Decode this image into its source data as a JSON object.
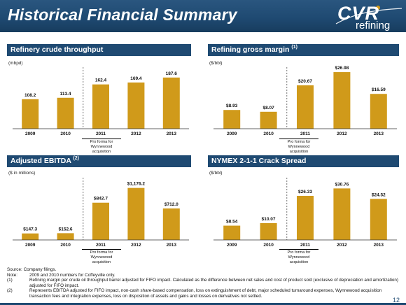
{
  "header": {
    "title": "Historical Financial Summary"
  },
  "logo": {
    "main": "CVR",
    "sub": "refining"
  },
  "colors": {
    "bar": "#d09a1a",
    "header": "#1f4a72"
  },
  "charts": [
    {
      "panel_title": "Refinery crude throughput",
      "superscript": "",
      "unit": "(mbpd)",
      "proforma": "Pro forma for Wynnewood acquisition"
    },
    {
      "panel_title": "Refining gross margin",
      "superscript": "(1)",
      "unit": "($/bbl)",
      "proforma": "Pro forma for Wynnewood acquisition"
    },
    {
      "panel_title": "Adjusted EBITDA",
      "superscript": "(2)",
      "unit": "($ in millions)",
      "proforma": "Pro forma for Wynnewood acquisition"
    },
    {
      "panel_title": "NYMEX 2-1-1 Crack Spread",
      "superscript": "",
      "unit": "($/bbl)",
      "proforma": "Pro forma for Wynnewood acquisition"
    }
  ],
  "chart_data": [
    {
      "type": "bar",
      "categories": [
        "2009",
        "2010",
        "2011",
        "2012",
        "2013"
      ],
      "values": [
        108.2,
        113.4,
        162.4,
        169.4,
        187.6
      ],
      "value_labels": [
        "108.2",
        "113.4",
        "162.4",
        "169.4",
        "187.6"
      ],
      "title": "Refinery crude throughput",
      "ylabel": "(mbpd)",
      "ylim": [
        0,
        200
      ]
    },
    {
      "type": "bar",
      "categories": [
        "2009",
        "2010",
        "2011",
        "2012",
        "2013"
      ],
      "values": [
        8.93,
        8.07,
        20.67,
        26.98,
        16.59
      ],
      "value_labels": [
        "$8.93",
        "$8.07",
        "$20.67",
        "$26.98",
        "$16.59"
      ],
      "title": "Refining gross margin (1)",
      "ylabel": "($/bbl)",
      "ylim": [
        0,
        28
      ]
    },
    {
      "type": "bar",
      "categories": [
        "2009",
        "2010",
        "2011",
        "2012",
        "2013"
      ],
      "values": [
        147.3,
        152.6,
        842.7,
        1176.2,
        712.0
      ],
      "value_labels": [
        "$147.3",
        "$152.6",
        "$842.7",
        "$1,176.2",
        "$712.0"
      ],
      "title": "Adjusted EBITDA (2)",
      "ylabel": "($ in millions)",
      "ylim": [
        0,
        1250
      ]
    },
    {
      "type": "bar",
      "categories": [
        "2009",
        "2010",
        "2011",
        "2012",
        "2013"
      ],
      "values": [
        8.54,
        10.07,
        26.33,
        30.76,
        24.52
      ],
      "value_labels": [
        "$8.54",
        "$10.07",
        "$26.33",
        "$30.76",
        "$24.52"
      ],
      "title": "NYMEX 2-1-1 Crack Spread",
      "ylabel": "($/bbl)",
      "ylim": [
        0,
        33
      ]
    }
  ],
  "footnotes": [
    {
      "key": "Source:",
      "text": "Company filings."
    },
    {
      "key": "Note:",
      "text": "2009 and 2010 numbers for Coffeyville only."
    },
    {
      "key": "(1)",
      "text": "Refining margin per crude oil throughput barrel adjusted for FIFO impact. Calculated as the difference between net sales and cost of product sold (exclusive of depreciation and amortization) adjusted for FIFO impact."
    },
    {
      "key": "(2)",
      "text": "Represents EBITDA adjusted for FIFO impact, non-cash share-based compensation, loss on extinguishment of debt, major scheduled turnaround expenses, Wynnewood acquisition transaction fees and integration expenses, loss on disposition of assets and gains and losses on derivatives not settled."
    }
  ],
  "page_number": "12"
}
